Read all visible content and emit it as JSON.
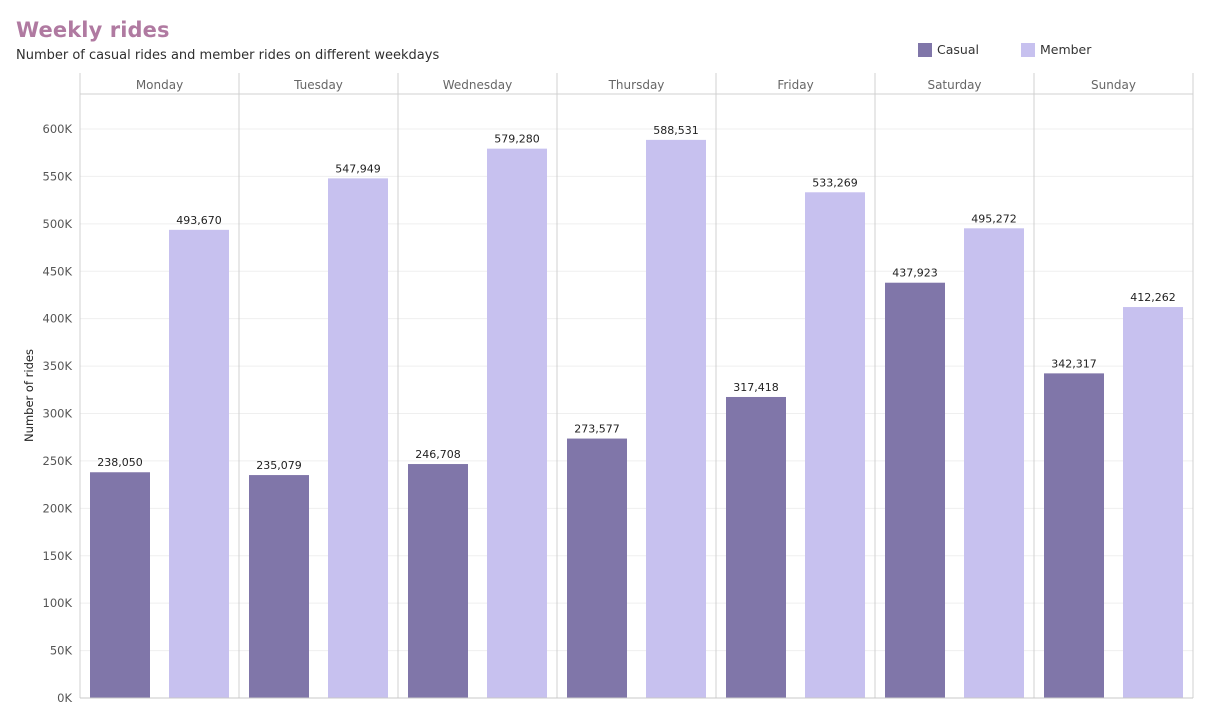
{
  "chart_data": {
    "type": "bar",
    "title": "Weekly rides",
    "subtitle": "Number of casual rides and member rides on different weekdays",
    "ylabel": "Number of rides",
    "xlabel": "",
    "categories": [
      "Monday",
      "Tuesday",
      "Wednesday",
      "Thursday",
      "Friday",
      "Saturday",
      "Sunday"
    ],
    "series": [
      {
        "name": "Casual",
        "color": "#8076a9",
        "values": [
          238050,
          235079,
          246708,
          273577,
          317418,
          437923,
          342317
        ],
        "labels": [
          "238,050",
          "235,079",
          "246,708",
          "273,577",
          "317,418",
          "437,923",
          "342,317"
        ]
      },
      {
        "name": "Member",
        "color": "#c7c1ef",
        "values": [
          493670,
          547949,
          579280,
          588531,
          533269,
          495272,
          412262
        ],
        "labels": [
          "493,670",
          "547,949",
          "579,280",
          "588,531",
          "533,269",
          "495,272",
          "412,262"
        ]
      }
    ],
    "ylim": [
      0,
      600000
    ],
    "yticks": [
      0,
      50000,
      100000,
      150000,
      200000,
      250000,
      300000,
      350000,
      400000,
      450000,
      500000,
      550000,
      600000
    ],
    "ytick_labels": [
      "0K",
      "50K",
      "100K",
      "150K",
      "200K",
      "250K",
      "300K",
      "350K",
      "400K",
      "450K",
      "500K",
      "550K",
      "600K"
    ],
    "grid": true,
    "legend_position": "top-right"
  }
}
